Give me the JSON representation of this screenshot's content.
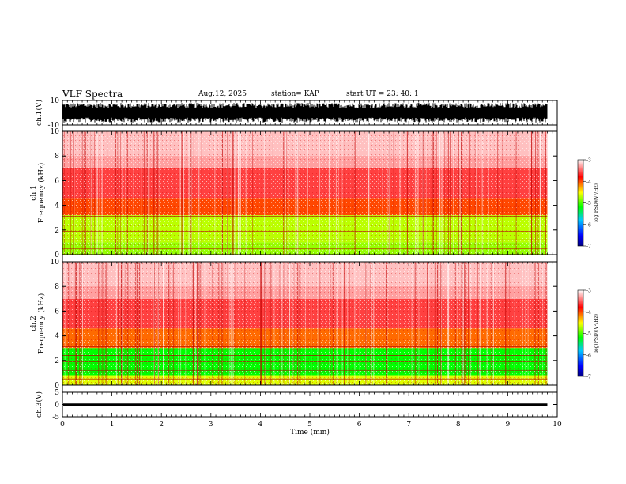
{
  "header": {
    "title": "VLF Spectra",
    "date": "Aug.12, 2025",
    "station": "station= KAP",
    "start": "start  UT =   23: 40: 1"
  },
  "chart_data": [
    {
      "type": "line",
      "name": "ch1-waveform",
      "ylabel": "ch.1(V)",
      "ylim": [
        -10,
        10
      ],
      "yticks": [
        "10",
        "-10"
      ],
      "xlim": [
        0,
        10
      ],
      "description_range": "signal fills roughly -8 to +8 V from 0 to 9.8 min"
    },
    {
      "type": "heatmap",
      "name": "ch1-spectrogram",
      "ylabel": "ch.1\nFrequency (kHz)",
      "ylim": [
        0,
        10
      ],
      "yticks": [
        "0",
        "2",
        "4",
        "6",
        "8",
        "10"
      ],
      "xlim": [
        0,
        10
      ],
      "data_end_min": 9.8,
      "bands_kHz": [
        {
          "from": 0.0,
          "to": 1.0,
          "level": -4.8
        },
        {
          "from": 1.0,
          "to": 3.2,
          "level": -4.7
        },
        {
          "from": 3.2,
          "to": 4.6,
          "level": -4.0
        },
        {
          "from": 4.6,
          "to": 7.0,
          "level": -3.6
        },
        {
          "from": 7.0,
          "to": 10.0,
          "level": -3.3
        }
      ],
      "colorbar": {
        "label": "log(PSD)(V²/Hz)",
        "min": -7,
        "max": -3,
        "ticks": [
          "-3",
          "-4",
          "-5",
          "-6",
          "-7"
        ]
      }
    },
    {
      "type": "heatmap",
      "name": "ch2-spectrogram",
      "ylabel": "ch.2\nFrequency (kHz)",
      "ylim": [
        0,
        10
      ],
      "yticks": [
        "0",
        "2",
        "4",
        "6",
        "8",
        "10"
      ],
      "xlim": [
        0,
        10
      ],
      "data_end_min": 9.8,
      "bands_kHz": [
        {
          "from": 0.0,
          "to": 0.8,
          "level": -4.6
        },
        {
          "from": 0.8,
          "to": 3.0,
          "level": -5.2
        },
        {
          "from": 3.0,
          "to": 4.6,
          "level": -4.1
        },
        {
          "from": 4.6,
          "to": 7.0,
          "level": -3.6
        },
        {
          "from": 7.0,
          "to": 10.0,
          "level": -3.3
        }
      ],
      "colorbar": {
        "label": "log(PSD)(V²/Hz)",
        "min": -7,
        "max": -3,
        "ticks": [
          "-3",
          "-4",
          "-5",
          "-6",
          "-7"
        ]
      }
    },
    {
      "type": "line",
      "name": "ch3-waveform",
      "ylabel": "ch.3(V)",
      "ylim": [
        -5,
        5
      ],
      "yticks": [
        "5",
        "0",
        "-5"
      ],
      "xlim": [
        0,
        10
      ],
      "band_V": [
        -0.8,
        0.4
      ]
    }
  ],
  "xaxis": {
    "label": "Time (min)",
    "ticks": [
      "0",
      "1",
      "2",
      "3",
      "4",
      "5",
      "6",
      "7",
      "8",
      "9",
      "10"
    ]
  }
}
